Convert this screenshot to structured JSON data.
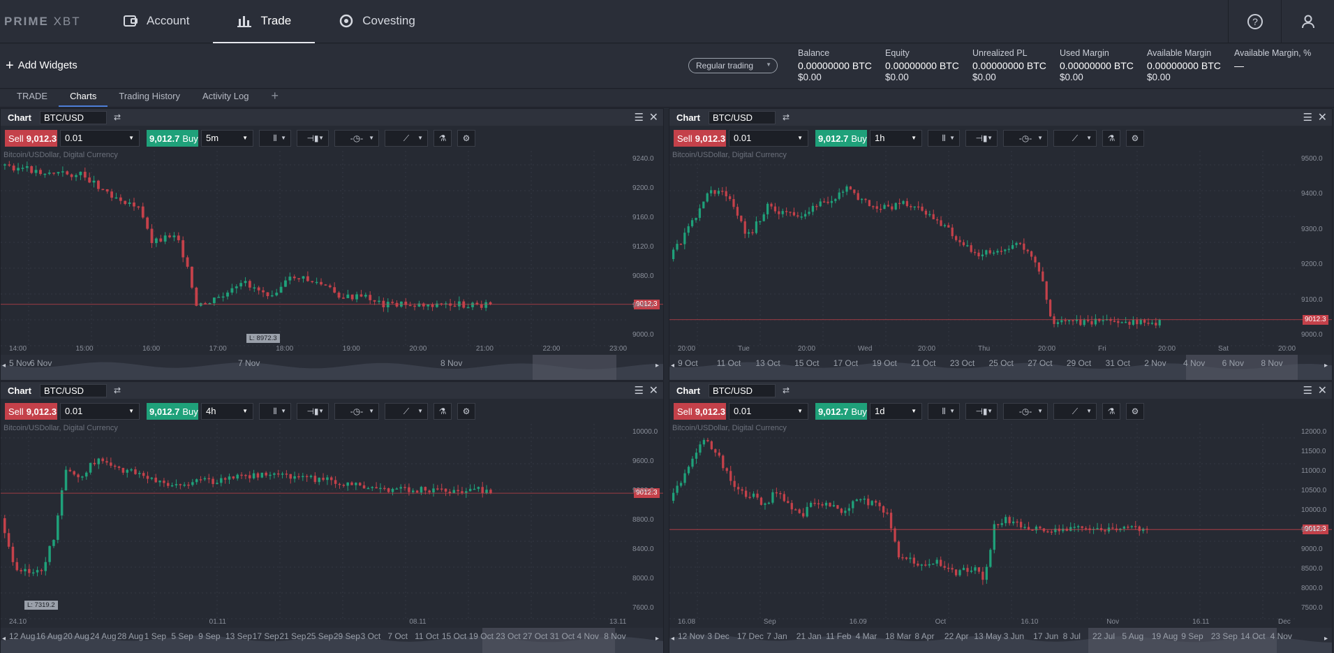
{
  "topbar": {
    "logo": "PRIME",
    "logo_x": "XBT",
    "nav": [
      {
        "label": "Account",
        "icon": "wallet-icon"
      },
      {
        "label": "Trade",
        "icon": "bar-chart-icon",
        "active": true
      },
      {
        "label": "Covesting",
        "icon": "covesting-icon"
      }
    ]
  },
  "toolbar": {
    "add_widgets": "Add Widgets",
    "regular_trading": "Regular trading"
  },
  "metrics": [
    {
      "label": "Balance",
      "value": "0.00000000 BTC",
      "usd": "$0.00"
    },
    {
      "label": "Equity",
      "value": "0.00000000 BTC",
      "usd": "$0.00"
    },
    {
      "label": "Unrealized PL",
      "value": "0.00000000 BTC",
      "usd": "$0.00"
    },
    {
      "label": "Used Margin",
      "value": "0.00000000 BTC",
      "usd": "$0.00"
    },
    {
      "label": "Available Margin",
      "value": "0.00000000 BTC",
      "usd": "$0.00"
    },
    {
      "label": "Available Margin, %",
      "value": "—",
      "usd": ""
    }
  ],
  "tabs": [
    "TRADE",
    "Charts",
    "Trading History",
    "Activity Log",
    "+"
  ],
  "colors": {
    "up": "#1fa17a",
    "down": "#c4414a",
    "bg": "#262a33",
    "grid": "#343843"
  },
  "charts": [
    {
      "title": "Chart",
      "symbol": "BTC/USD",
      "sell_label": "Sell",
      "sell_price": "9,012.3",
      "qty": "0.01",
      "buy_price": "9,012.7",
      "buy_label": "Buy",
      "timeframe": "5m",
      "description": "Bitcoin/USDollar, Digital Currency",
      "price_tag": "9012.3",
      "low_tag": "L: 8972.3",
      "y_labels": [
        "9240.0",
        "9200.0",
        "9160.0",
        "9120.0",
        "9080.0",
        "9040.0",
        "9000.0"
      ],
      "x_labels": [
        "14:00",
        "15:00",
        "16:00",
        "17:00",
        "18:00",
        "19:00",
        "20:00",
        "21:00",
        "22:00",
        "23:00"
      ],
      "nav_labels": [
        "5 Nov",
        "6 Nov",
        "7 Nov",
        "8 Nov"
      ]
    },
    {
      "title": "Chart",
      "symbol": "BTC/USD",
      "sell_label": "Sell",
      "sell_price": "9,012.3",
      "qty": "0.01",
      "buy_price": "9,012.7",
      "buy_label": "Buy",
      "timeframe": "1h",
      "description": "Bitcoin/USDollar, Digital Currency",
      "price_tag": "9012.3",
      "low_tag": "",
      "y_labels": [
        "9500.0",
        "9400.0",
        "9300.0",
        "9200.0",
        "9100.0",
        "9000.0"
      ],
      "x_labels": [
        "20:00",
        "Tue",
        "20:00",
        "Wed",
        "20:00",
        "Thu",
        "20:00",
        "Fri",
        "20:00",
        "Sat",
        "20:00"
      ],
      "nav_labels": [
        "9 Oct",
        "11 Oct",
        "13 Oct",
        "15 Oct",
        "17 Oct",
        "19 Oct",
        "21 Oct",
        "23 Oct",
        "25 Oct",
        "27 Oct",
        "29 Oct",
        "31 Oct",
        "2 Nov",
        "4 Nov",
        "6 Nov",
        "8 Nov"
      ]
    },
    {
      "title": "Chart",
      "symbol": "BTC/USD",
      "sell_label": "Sell",
      "sell_price": "9,012.3",
      "qty": "0.01",
      "buy_price": "9,012.7",
      "buy_label": "Buy",
      "timeframe": "4h",
      "description": "Bitcoin/USDollar, Digital Currency",
      "price_tag": "9012.3",
      "low_tag": "L: 7319.2",
      "y_labels": [
        "10000.0",
        "9600.0",
        "9200.0",
        "8800.0",
        "8400.0",
        "8000.0",
        "7600.0"
      ],
      "x_labels": [
        "24.10",
        "01.11",
        "08.11",
        "13.11"
      ],
      "nav_labels": [
        "12 Aug",
        "16 Aug",
        "20 Aug",
        "24 Aug",
        "28 Aug",
        "1 Sep",
        "5 Sep",
        "9 Sep",
        "13 Sep",
        "17 Sep",
        "21 Sep",
        "25 Sep",
        "29 Sep",
        "3 Oct",
        "7 Oct",
        "11 Oct",
        "15 Oct",
        "19 Oct",
        "23 Oct",
        "27 Oct",
        "31 Oct",
        "4 Nov",
        "8 Nov"
      ]
    },
    {
      "title": "Chart",
      "symbol": "BTC/USD",
      "sell_label": "Sell",
      "sell_price": "9,012.3",
      "qty": "0.01",
      "buy_price": "9,012.7",
      "buy_label": "Buy",
      "timeframe": "1d",
      "description": "Bitcoin/USDollar, Digital Currency",
      "price_tag": "9012.3",
      "low_tag": "",
      "y_labels": [
        "12000.0",
        "11500.0",
        "11000.0",
        "10500.0",
        "10000.0",
        "9500.0",
        "9000.0",
        "8500.0",
        "8000.0",
        "7500.0"
      ],
      "x_labels": [
        "16.08",
        "Sep",
        "16.09",
        "Oct",
        "16.10",
        "Nov",
        "16.11",
        "Dec"
      ],
      "nav_labels": [
        "12 Nov",
        "3 Dec",
        "17 Dec",
        "7 Jan",
        "21 Jan",
        "11 Feb",
        "4 Mar",
        "18 Mar",
        "8 Apr",
        "22 Apr",
        "13 May",
        "3 Jun",
        "17 Jun",
        "8 Jul",
        "22 Jul",
        "5 Aug",
        "19 Aug",
        "9 Sep",
        "23 Sep",
        "14 Oct",
        "4 Nov"
      ]
    }
  ]
}
